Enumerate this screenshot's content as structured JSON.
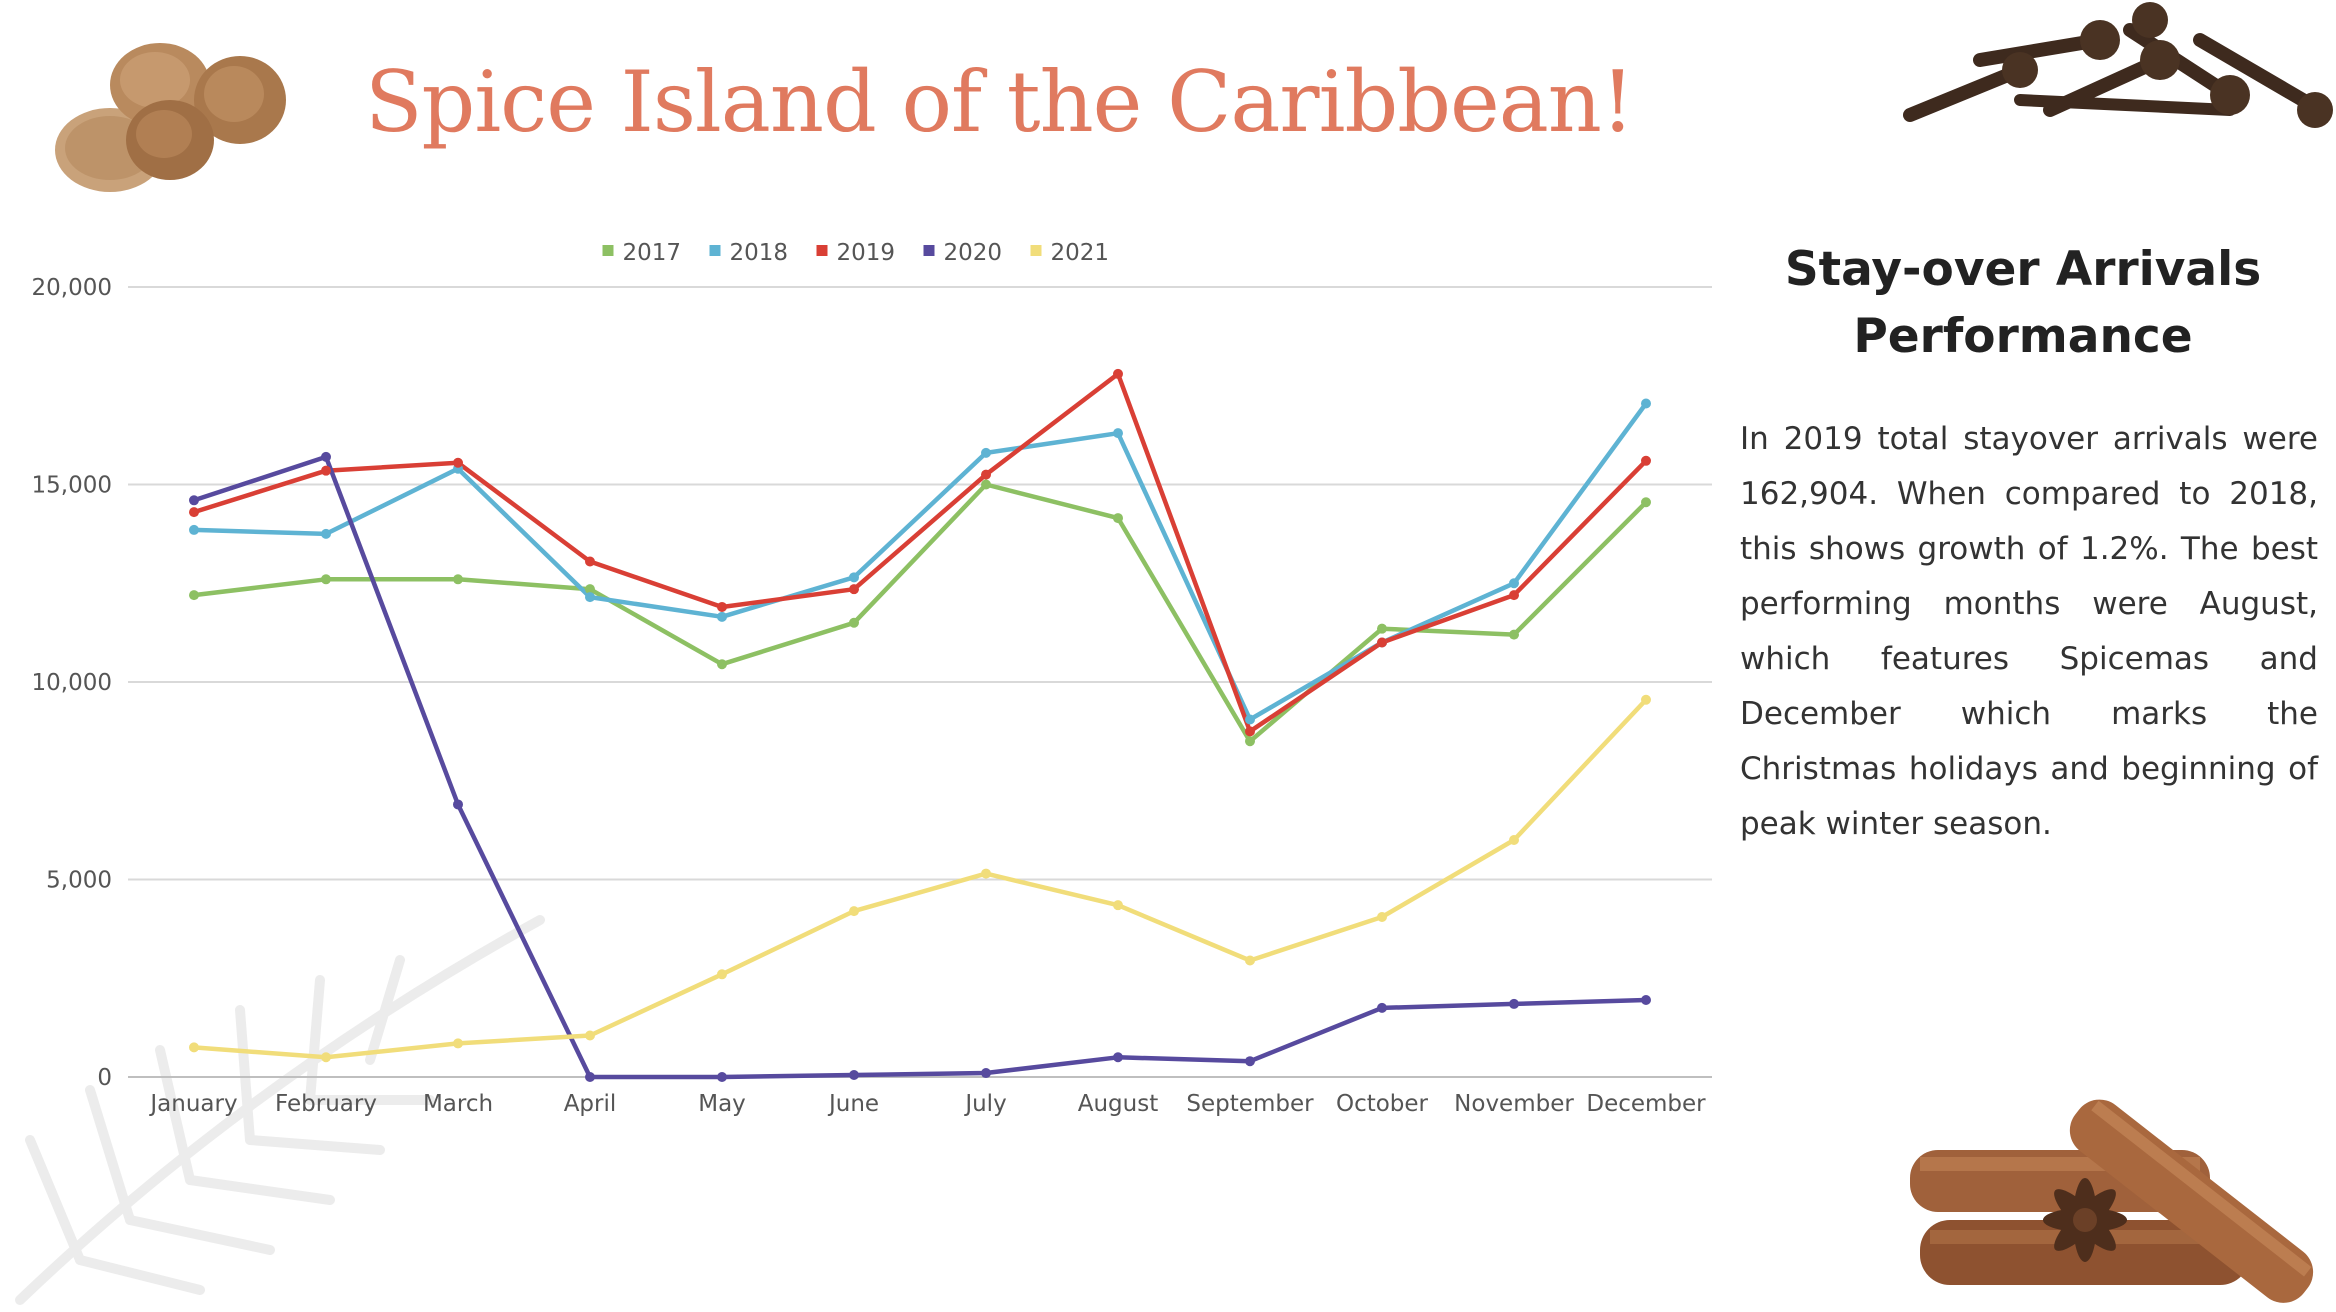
{
  "header": {
    "title": "Spice Island of the Caribbean!",
    "title_color": "#E07A5F"
  },
  "side_panel": {
    "heading": "Stay-over Arrivals Performance",
    "body": "In 2019 total stayover arrivals were 162,904. When compared to 2018, this shows growth of  1.2%. The best performing months were August, which features Spicemas and December which marks the Christmas holidays and beginning of peak winter season."
  },
  "decor": [
    "nutmeg-image",
    "cloves-image",
    "cinnamon-star-anise-image",
    "palm-leaf-watermark"
  ],
  "chart_data": {
    "type": "line",
    "title": "",
    "xlabel": "",
    "ylabel": "",
    "categories": [
      "January",
      "February",
      "March",
      "April",
      "May",
      "June",
      "July",
      "August",
      "September",
      "October",
      "November",
      "December"
    ],
    "ylim": [
      0,
      20000
    ],
    "yticks": [
      0,
      5000,
      10000,
      15000,
      20000
    ],
    "ytick_labels": [
      "0",
      "5,000",
      "10,000",
      "15,000",
      "20,000"
    ],
    "grid": true,
    "legend_position": "top-center",
    "series": [
      {
        "name": "2017",
        "color": "#8DC063",
        "values": [
          12200,
          12600,
          12600,
          12350,
          10450,
          11500,
          15000,
          14150,
          8500,
          11350,
          11200,
          14550
        ]
      },
      {
        "name": "2018",
        "color": "#5EB3D3",
        "values": [
          13850,
          13750,
          15400,
          12150,
          11650,
          12650,
          15800,
          16300,
          9050,
          11000,
          12500,
          17050
        ]
      },
      {
        "name": "2019",
        "color": "#D93F35",
        "values": [
          14300,
          15350,
          15550,
          13050,
          11900,
          12350,
          15250,
          17800,
          8750,
          11000,
          12200,
          15600
        ]
      },
      {
        "name": "2020",
        "color": "#574A9E",
        "values": [
          14600,
          15700,
          6900,
          0,
          0,
          50,
          100,
          500,
          400,
          1750,
          1850,
          1950
        ]
      },
      {
        "name": "2021",
        "color": "#F1DD7A",
        "values": [
          750,
          500,
          850,
          1050,
          2600,
          4200,
          5150,
          4350,
          2950,
          4050,
          6000,
          9550
        ]
      }
    ]
  }
}
